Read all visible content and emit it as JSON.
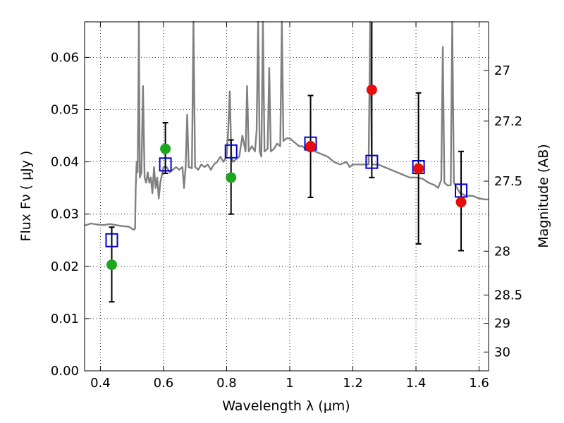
{
  "chart_data": {
    "type": "scatter",
    "xlabel": "Wavelength  λ (μm)",
    "ylabel": "Flux  Fν  ( μJy )",
    "y2label": "Magnitude (AB)",
    "xlim": [
      0.35,
      1.63
    ],
    "ylim": [
      0.0,
      0.0668
    ],
    "grid": true,
    "x_ticks": [
      0.4,
      0.6,
      0.8,
      1.0,
      1.2,
      1.4,
      1.6
    ],
    "x_tick_labels": [
      "0.4",
      "0.6",
      "0.8",
      "1",
      "1.2",
      "1.4",
      "1.6"
    ],
    "y_ticks": [
      0.0,
      0.01,
      0.02,
      0.03,
      0.04,
      0.05,
      0.06
    ],
    "y_tick_labels": [
      "0.00",
      "0.01",
      "0.02",
      "0.03",
      "0.04",
      "0.05",
      "0.06"
    ],
    "y2_ticks": [
      {
        "label": "27",
        "flux": 0.0575
      },
      {
        "label": "27.2",
        "flux": 0.0478
      },
      {
        "label": "27.5",
        "flux": 0.0363
      },
      {
        "label": "28",
        "flux": 0.0229
      },
      {
        "label": "28.5",
        "flux": 0.0145
      },
      {
        "label": "29",
        "flux": 0.0091
      },
      {
        "label": "30",
        "flux": 0.0036
      }
    ],
    "colors": {
      "model": "#808080",
      "green": "#1fa61f",
      "red": "#e80c0c",
      "square": "#0000cc",
      "errorbar": "#000000"
    },
    "model_spectrum": [
      [
        0.35,
        0.0278
      ],
      [
        0.37,
        0.0282
      ],
      [
        0.39,
        0.028
      ],
      [
        0.41,
        0.0279
      ],
      [
        0.43,
        0.0281
      ],
      [
        0.45,
        0.0279
      ],
      [
        0.47,
        0.0277
      ],
      [
        0.49,
        0.0276
      ],
      [
        0.505,
        0.027
      ],
      [
        0.51,
        0.0272
      ],
      [
        0.512,
        0.035
      ],
      [
        0.515,
        0.04
      ],
      [
        0.518,
        0.038
      ],
      [
        0.52,
        0.05
      ],
      [
        0.522,
        0.0668
      ],
      [
        0.525,
        0.037
      ],
      [
        0.53,
        0.038
      ],
      [
        0.535,
        0.0545
      ],
      [
        0.54,
        0.037
      ],
      [
        0.545,
        0.036
      ],
      [
        0.55,
        0.038
      ],
      [
        0.555,
        0.036
      ],
      [
        0.56,
        0.037
      ],
      [
        0.565,
        0.034
      ],
      [
        0.57,
        0.039
      ],
      [
        0.575,
        0.035
      ],
      [
        0.58,
        0.037
      ],
      [
        0.585,
        0.033
      ],
      [
        0.59,
        0.036
      ],
      [
        0.6,
        0.039
      ],
      [
        0.61,
        0.039
      ],
      [
        0.62,
        0.038
      ],
      [
        0.63,
        0.0385
      ],
      [
        0.64,
        0.039
      ],
      [
        0.65,
        0.0385
      ],
      [
        0.66,
        0.039
      ],
      [
        0.665,
        0.035
      ],
      [
        0.67,
        0.039
      ],
      [
        0.675,
        0.049
      ],
      [
        0.68,
        0.039
      ],
      [
        0.69,
        0.0388
      ],
      [
        0.695,
        0.0668
      ],
      [
        0.7,
        0.039
      ],
      [
        0.71,
        0.0385
      ],
      [
        0.72,
        0.0395
      ],
      [
        0.73,
        0.039
      ],
      [
        0.74,
        0.0395
      ],
      [
        0.75,
        0.0385
      ],
      [
        0.76,
        0.0395
      ],
      [
        0.77,
        0.04
      ],
      [
        0.78,
        0.041
      ],
      [
        0.79,
        0.04
      ],
      [
        0.8,
        0.041
      ],
      [
        0.805,
        0.046
      ],
      [
        0.81,
        0.0535
      ],
      [
        0.815,
        0.041
      ],
      [
        0.82,
        0.04
      ],
      [
        0.83,
        0.0405
      ],
      [
        0.84,
        0.041
      ],
      [
        0.85,
        0.045
      ],
      [
        0.86,
        0.042
      ],
      [
        0.865,
        0.0545
      ],
      [
        0.87,
        0.042
      ],
      [
        0.88,
        0.043
      ],
      [
        0.89,
        0.042
      ],
      [
        0.895,
        0.046
      ],
      [
        0.9,
        0.0668
      ],
      [
        0.905,
        0.042
      ],
      [
        0.91,
        0.041
      ],
      [
        0.915,
        0.0668
      ],
      [
        0.92,
        0.042
      ],
      [
        0.93,
        0.0425
      ],
      [
        0.935,
        0.058
      ],
      [
        0.94,
        0.042
      ],
      [
        0.95,
        0.0425
      ],
      [
        0.96,
        0.0435
      ],
      [
        0.97,
        0.043
      ],
      [
        0.975,
        0.0668
      ],
      [
        0.98,
        0.044
      ],
      [
        0.99,
        0.0445
      ],
      [
        1.0,
        0.0445
      ],
      [
        1.01,
        0.044
      ],
      [
        1.02,
        0.0435
      ],
      [
        1.03,
        0.043
      ],
      [
        1.04,
        0.043
      ],
      [
        1.05,
        0.0425
      ],
      [
        1.06,
        0.042
      ],
      [
        1.08,
        0.042
      ],
      [
        1.1,
        0.0415
      ],
      [
        1.12,
        0.041
      ],
      [
        1.14,
        0.04
      ],
      [
        1.16,
        0.0395
      ],
      [
        1.18,
        0.04
      ],
      [
        1.19,
        0.039
      ],
      [
        1.2,
        0.0395
      ],
      [
        1.22,
        0.0395
      ],
      [
        1.24,
        0.0395
      ],
      [
        1.25,
        0.0395
      ],
      [
        1.255,
        0.0668
      ],
      [
        1.26,
        0.0395
      ],
      [
        1.28,
        0.0395
      ],
      [
        1.3,
        0.039
      ],
      [
        1.32,
        0.0385
      ],
      [
        1.34,
        0.038
      ],
      [
        1.36,
        0.0375
      ],
      [
        1.38,
        0.037
      ],
      [
        1.4,
        0.037
      ],
      [
        1.42,
        0.0368
      ],
      [
        1.44,
        0.036
      ],
      [
        1.46,
        0.0355
      ],
      [
        1.47,
        0.035
      ],
      [
        1.48,
        0.0365
      ],
      [
        1.485,
        0.062
      ],
      [
        1.49,
        0.036
      ],
      [
        1.5,
        0.0355
      ],
      [
        1.51,
        0.0355
      ],
      [
        1.515,
        0.0668
      ],
      [
        1.52,
        0.036
      ],
      [
        1.53,
        0.035
      ],
      [
        1.54,
        0.034
      ],
      [
        1.56,
        0.0335
      ],
      [
        1.58,
        0.0335
      ],
      [
        1.6,
        0.033
      ],
      [
        1.62,
        0.0328
      ],
      [
        1.63,
        0.0328
      ]
    ],
    "model_points": [
      {
        "x": 0.436,
        "y": 0.025
      },
      {
        "x": 0.606,
        "y": 0.0395
      },
      {
        "x": 0.814,
        "y": 0.042
      },
      {
        "x": 1.066,
        "y": 0.0435
      },
      {
        "x": 1.26,
        "y": 0.04
      },
      {
        "x": 1.408,
        "y": 0.039
      },
      {
        "x": 1.543,
        "y": 0.0345
      }
    ],
    "observed_points": [
      {
        "x": 0.436,
        "y": 0.0203,
        "err_low": 0.0132,
        "err_high": 0.0275,
        "color": "green"
      },
      {
        "x": 0.606,
        "y": 0.0425,
        "err_low": 0.0378,
        "err_high": 0.0475,
        "color": "green"
      },
      {
        "x": 0.814,
        "y": 0.037,
        "err_low": 0.03,
        "err_high": 0.0442,
        "color": "green"
      },
      {
        "x": 1.066,
        "y": 0.043,
        "err_low": 0.0332,
        "err_high": 0.0527,
        "color": "red"
      },
      {
        "x": 1.26,
        "y": 0.0538,
        "err_low": 0.037,
        "err_high": 0.0668,
        "color": "red"
      },
      {
        "x": 1.408,
        "y": 0.0387,
        "err_low": 0.0243,
        "err_high": 0.0532,
        "color": "red"
      },
      {
        "x": 1.543,
        "y": 0.0323,
        "err_low": 0.023,
        "err_high": 0.042,
        "color": "red"
      }
    ]
  }
}
